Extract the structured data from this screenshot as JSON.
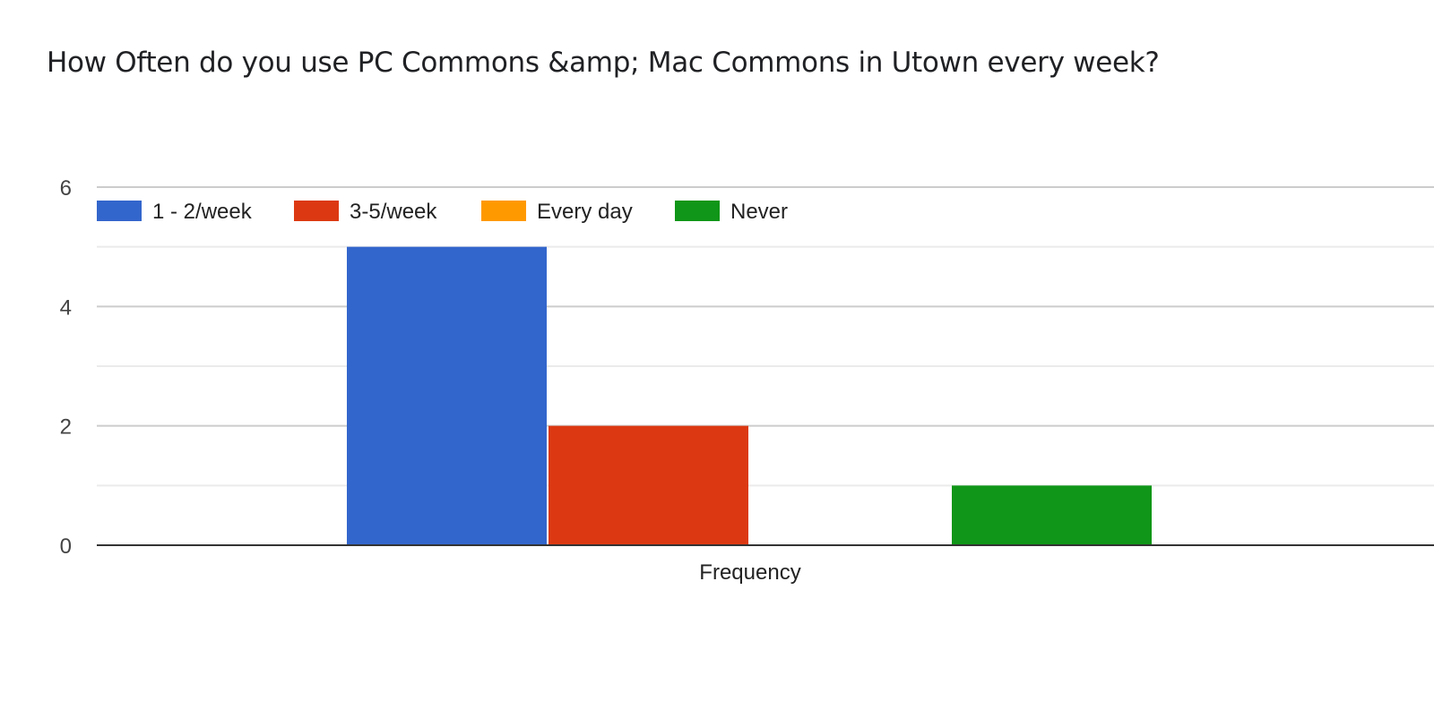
{
  "chart_data": {
    "type": "bar",
    "title": "How Often do you use PC Commons &amp; Mac Commons in Utown every week?",
    "categories": [
      "Frequency"
    ],
    "series": [
      {
        "name": "1 - 2/week",
        "values": [
          5
        ],
        "color": "#3366cc"
      },
      {
        "name": "3-5/week",
        "values": [
          2
        ],
        "color": "#dc3912"
      },
      {
        "name": "Every day",
        "values": [
          0
        ],
        "color": "#ff9900"
      },
      {
        "name": "Never",
        "values": [
          1
        ],
        "color": "#109618"
      }
    ],
    "yticks": [
      "0",
      "2",
      "4",
      "6"
    ],
    "ylim": [
      0,
      6
    ],
    "xlabel": "",
    "ylabel": "",
    "legend": "top-left",
    "grid": true
  }
}
